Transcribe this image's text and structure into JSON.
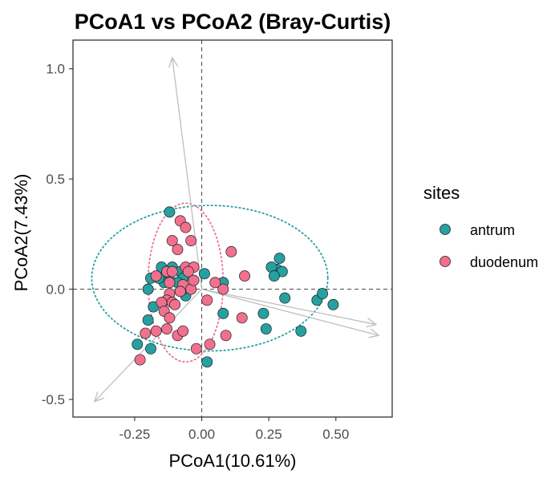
{
  "colors": {
    "antrum": "#26a0a0",
    "duodenum": "#f0708e",
    "arrow": "#bfbfbf",
    "zero_line": "#555555",
    "panel_border": "#333333"
  },
  "chart_data": {
    "type": "scatter",
    "title": "PCoA1 vs PCoA2 (Bray-Curtis)",
    "xlabel": "PCoA1(10.61%)",
    "ylabel": "PCoA2(7.43%)",
    "xlim": [
      -0.48,
      0.71
    ],
    "ylim": [
      -0.58,
      1.13
    ],
    "x_ticks": [
      -0.25,
      0.0,
      0.25,
      0.5
    ],
    "x_tick_labels": [
      "-0.25",
      "0.00",
      "0.25",
      "0.50"
    ],
    "y_ticks": [
      -0.5,
      0.0,
      0.5,
      1.0
    ],
    "y_tick_labels": [
      "-0.5",
      "0.0",
      "0.5",
      "1.0"
    ],
    "grid": false,
    "legend": {
      "title": "sites",
      "position": "right",
      "entries": [
        "antrum",
        "duodenum"
      ]
    },
    "series": [
      {
        "name": "antrum",
        "ellipse": {
          "center": [
            0.03,
            0.05
          ],
          "radii": [
            0.44,
            0.33
          ]
        },
        "points": [
          [
            -0.12,
            0.35
          ],
          [
            -0.15,
            0.1
          ],
          [
            -0.19,
            0.05
          ],
          [
            -0.13,
            0.08
          ],
          [
            -0.11,
            0.1
          ],
          [
            -0.08,
            0.08
          ],
          [
            -0.07,
            0.05
          ],
          [
            -0.12,
            0.04
          ],
          [
            -0.14,
            0.03
          ],
          [
            -0.09,
            0.03
          ],
          [
            -0.16,
            0.05
          ],
          [
            -0.2,
            0.0
          ],
          [
            -0.06,
            -0.03
          ],
          [
            -0.18,
            -0.08
          ],
          [
            -0.2,
            -0.14
          ],
          [
            -0.24,
            -0.25
          ],
          [
            -0.19,
            -0.27
          ],
          [
            -0.07,
            0.0
          ],
          [
            0.01,
            0.07
          ],
          [
            0.08,
            0.03
          ],
          [
            0.08,
            -0.11
          ],
          [
            0.23,
            -0.11
          ],
          [
            0.24,
            -0.18
          ],
          [
            0.28,
            0.09
          ],
          [
            0.3,
            0.08
          ],
          [
            0.26,
            0.1
          ],
          [
            0.29,
            0.14
          ],
          [
            0.27,
            0.06
          ],
          [
            0.31,
            -0.04
          ],
          [
            0.37,
            -0.19
          ],
          [
            0.43,
            -0.05
          ],
          [
            0.45,
            -0.02
          ],
          [
            0.49,
            -0.07
          ],
          [
            0.02,
            -0.33
          ]
        ]
      },
      {
        "name": "duodenum",
        "ellipse": {
          "center": [
            -0.06,
            0.03
          ],
          "radii": [
            0.14,
            0.36
          ]
        },
        "points": [
          [
            -0.08,
            0.31
          ],
          [
            -0.06,
            0.28
          ],
          [
            -0.04,
            0.22
          ],
          [
            -0.11,
            0.22
          ],
          [
            -0.09,
            0.18
          ],
          [
            -0.06,
            0.1
          ],
          [
            -0.03,
            0.1
          ],
          [
            -0.05,
            0.08
          ],
          [
            -0.13,
            0.08
          ],
          [
            -0.11,
            0.08
          ],
          [
            -0.17,
            0.06
          ],
          [
            -0.12,
            0.03
          ],
          [
            -0.07,
            0.02
          ],
          [
            -0.08,
            -0.01
          ],
          [
            -0.04,
            0.0
          ],
          [
            -0.12,
            -0.02
          ],
          [
            -0.13,
            -0.05
          ],
          [
            -0.15,
            -0.06
          ],
          [
            -0.11,
            -0.06
          ],
          [
            -0.1,
            -0.07
          ],
          [
            -0.14,
            -0.1
          ],
          [
            -0.12,
            -0.13
          ],
          [
            -0.13,
            -0.18
          ],
          [
            -0.17,
            -0.19
          ],
          [
            -0.21,
            -0.2
          ],
          [
            -0.09,
            -0.21
          ],
          [
            -0.07,
            -0.19
          ],
          [
            -0.23,
            -0.32
          ],
          [
            -0.02,
            -0.27
          ],
          [
            0.03,
            -0.25
          ],
          [
            0.09,
            -0.21
          ],
          [
            0.15,
            -0.13
          ],
          [
            0.11,
            0.17
          ],
          [
            0.16,
            0.06
          ],
          [
            0.08,
            0.0
          ],
          [
            0.05,
            0.03
          ],
          [
            -0.03,
            0.04
          ],
          [
            0.02,
            -0.05
          ]
        ]
      }
    ],
    "arrows": [
      [
        -0.11,
        1.05
      ],
      [
        -0.4,
        -0.51
      ],
      [
        0.65,
        -0.16
      ],
      [
        0.66,
        -0.21
      ]
    ]
  }
}
